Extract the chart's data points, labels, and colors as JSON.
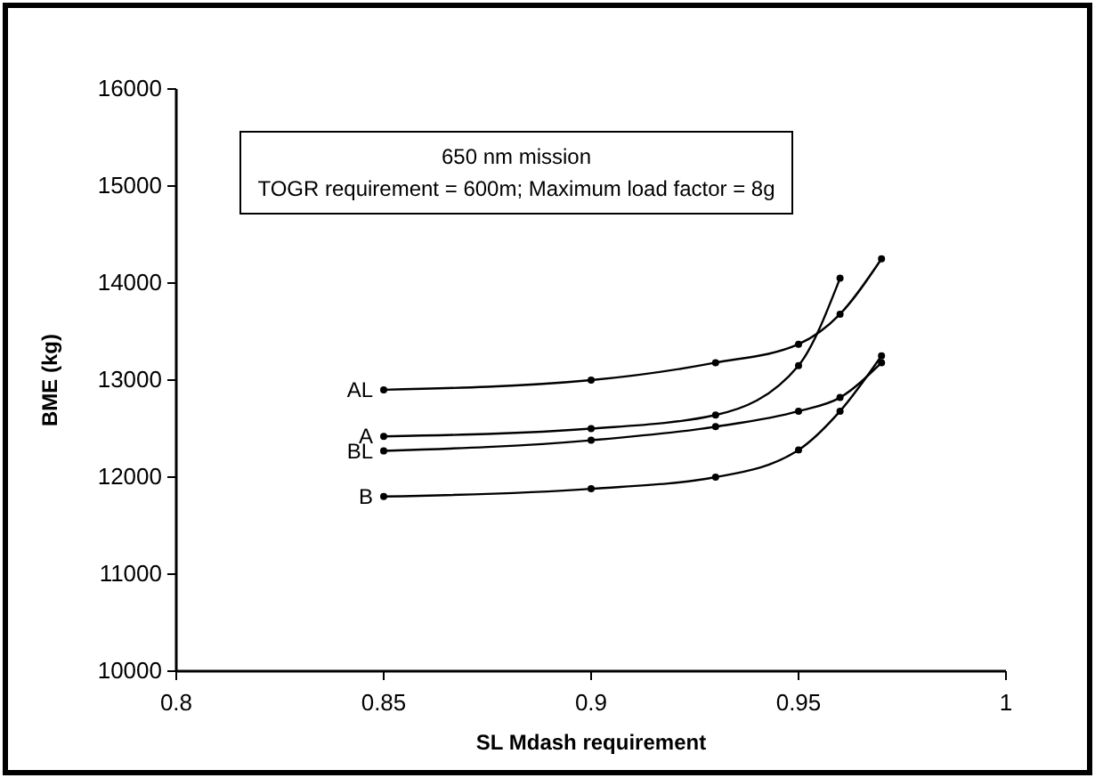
{
  "chart_data": {
    "type": "line",
    "xlabel": "SL Mdash requirement",
    "ylabel": "BME (kg)",
    "annotations": [
      "650 nm mission",
      "TOGR requirement = 600m;   Maximum load factor = 8g"
    ],
    "xlim": [
      0.8,
      1
    ],
    "xticks": [
      0.8,
      0.85,
      0.9,
      0.95,
      1
    ],
    "ylim": [
      10000,
      16000
    ],
    "yticks": [
      10000,
      11000,
      12000,
      13000,
      14000,
      15000,
      16000
    ],
    "marker": "circle",
    "line_style": "solid",
    "grid": false,
    "series": [
      {
        "name": "AL",
        "color": "#000000",
        "x": [
          0.85,
          0.9,
          0.93,
          0.95,
          0.96,
          0.97
        ],
        "values": [
          12900,
          13000,
          13180,
          13370,
          13680,
          14250
        ]
      },
      {
        "name": "A",
        "color": "#000000",
        "x": [
          0.85,
          0.9,
          0.93,
          0.95,
          0.96
        ],
        "values": [
          12420,
          12500,
          12640,
          13150,
          14050
        ]
      },
      {
        "name": "BL",
        "color": "#000000",
        "x": [
          0.85,
          0.9,
          0.93,
          0.95,
          0.96,
          0.97
        ],
        "values": [
          12270,
          12380,
          12520,
          12680,
          12820,
          13180
        ]
      },
      {
        "name": "B",
        "color": "#000000",
        "x": [
          0.85,
          0.9,
          0.93,
          0.95,
          0.96,
          0.97
        ],
        "values": [
          11800,
          11880,
          12000,
          12280,
          12680,
          13250
        ]
      }
    ]
  }
}
